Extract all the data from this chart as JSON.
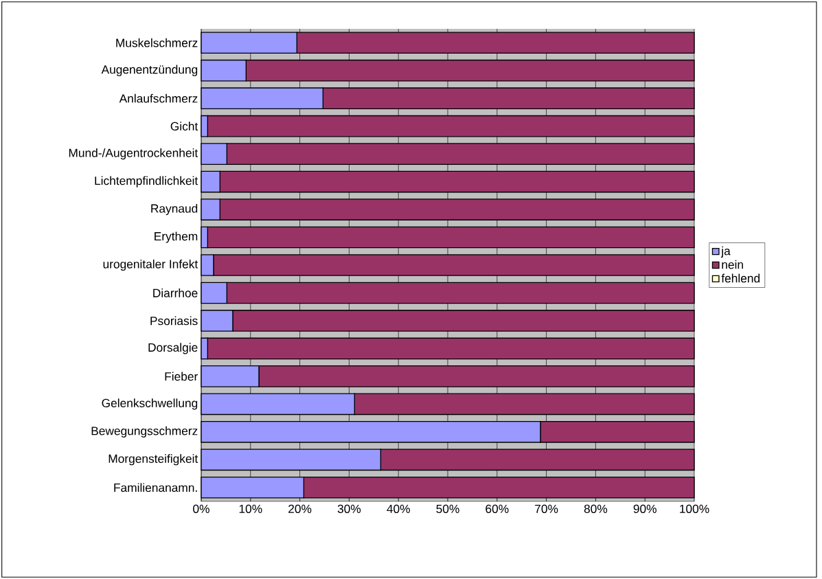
{
  "chart_data": {
    "type": "bar",
    "orientation": "horizontal",
    "stacked": true,
    "categories": [
      "Muskelschmerz",
      "Augenentzündung",
      "Anlaufschmerz",
      "Gicht",
      "Mund-/Augentrockenheit",
      "Lichtempfindlichkeit",
      "Raynaud",
      "Erythem",
      "urogenitaler Infekt",
      "Diarrhoe",
      "Psoriasis",
      "Dorsalgie",
      "Fieber",
      "Gelenkschwellung",
      "Bewegungsschmerz",
      "Morgensteifigkeit",
      "Familienanamn."
    ],
    "series": [
      {
        "name": "ja",
        "color": "#9999ff",
        "values": [
          19.4,
          9.1,
          24.7,
          1.3,
          5.2,
          3.8,
          3.8,
          1.3,
          2.5,
          5.2,
          6.4,
          1.3,
          11.7,
          31.1,
          68.8,
          36.4,
          20.8
        ]
      },
      {
        "name": "nein",
        "color": "#993366",
        "values": [
          80.6,
          90.9,
          75.3,
          98.7,
          94.8,
          96.2,
          96.2,
          98.7,
          97.5,
          94.8,
          93.6,
          98.7,
          88.3,
          68.9,
          31.2,
          63.6,
          79.2
        ]
      },
      {
        "name": "fehlend",
        "color": "#ffffcc",
        "values": [
          0,
          0,
          0,
          0,
          0,
          0,
          0,
          0,
          0,
          0,
          0,
          0,
          0,
          0,
          0,
          0,
          0
        ]
      }
    ],
    "xlim": [
      0,
      100
    ],
    "xticks": [
      {
        "value": 0,
        "label": "0%"
      },
      {
        "value": 10,
        "label": "10%"
      },
      {
        "value": 20,
        "label": "20%"
      },
      {
        "value": 30,
        "label": "30%"
      },
      {
        "value": 40,
        "label": "40%"
      },
      {
        "value": 50,
        "label": "50%"
      },
      {
        "value": 60,
        "label": "60%"
      },
      {
        "value": 70,
        "label": "70%"
      },
      {
        "value": 80,
        "label": "80%"
      },
      {
        "value": 90,
        "label": "90%"
      },
      {
        "value": 100,
        "label": "100%"
      }
    ],
    "grid": "x",
    "legend": "right"
  }
}
